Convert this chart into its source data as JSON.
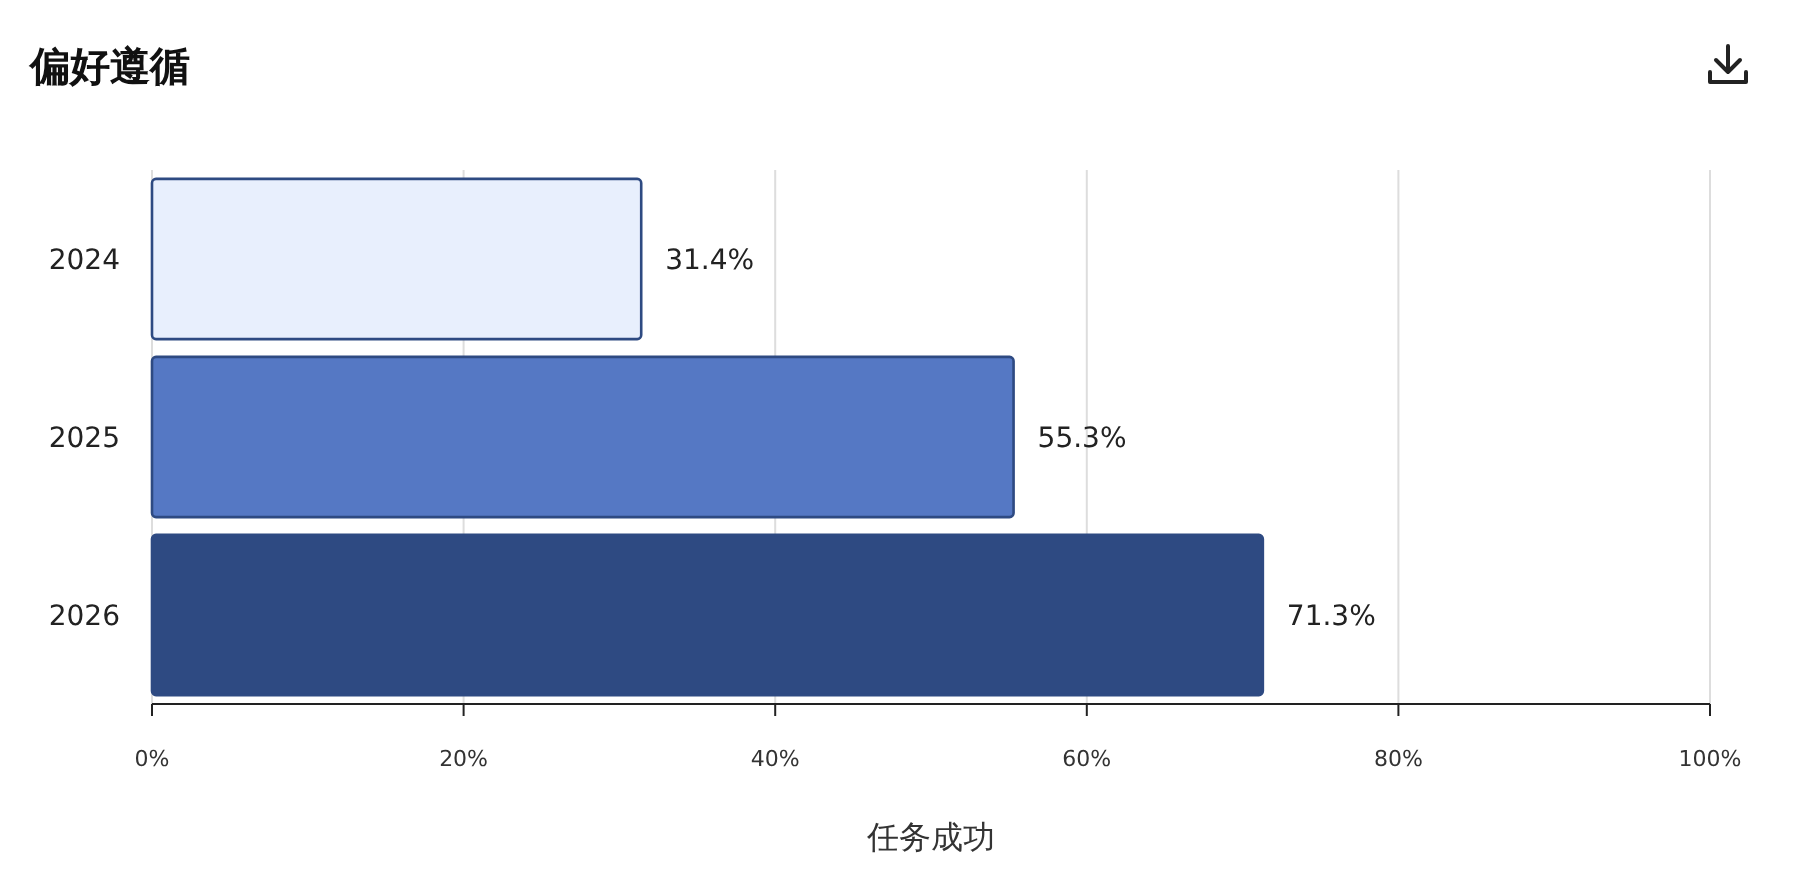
{
  "chart_data": {
    "type": "bar",
    "orientation": "horizontal",
    "title": "偏好遵循",
    "xlabel": "任务成功",
    "categories": [
      "2024",
      "2025",
      "2026"
    ],
    "values": [
      31.4,
      55.3,
      71.3
    ],
    "colors": [
      "#e8effd",
      "#5578c4",
      "#2e4a82"
    ],
    "value_labels": [
      "31.4%",
      "55.3%",
      "71.3%"
    ],
    "xlim": [
      0,
      100
    ],
    "xticks": [
      {
        "value": 0,
        "label": "0%"
      },
      {
        "value": 20,
        "label": "20%"
      },
      {
        "value": 40,
        "label": "40%"
      },
      {
        "value": 60,
        "label": "60%"
      },
      {
        "value": 80,
        "label": "80%"
      },
      {
        "value": 100,
        "label": "100%"
      }
    ],
    "grid": "x"
  }
}
